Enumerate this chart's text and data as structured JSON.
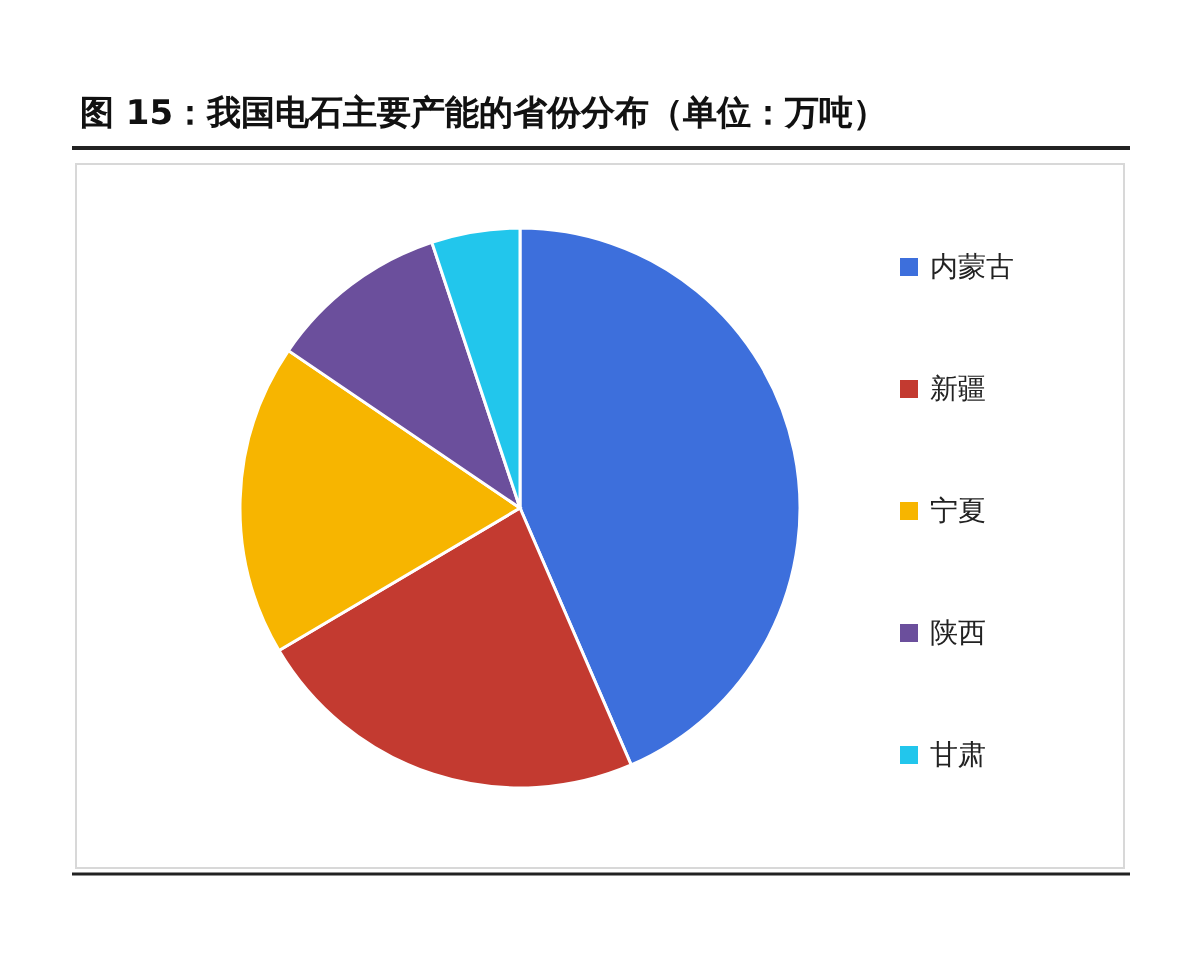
{
  "chart_data": {
    "type": "pie",
    "title": "图 15：我国电石主要产能的省份分布（单位：万吨）",
    "categories": [
      "内蒙古",
      "新疆",
      "宁夏",
      "陕西",
      "甘肃"
    ],
    "values": [
      43.5,
      23,
      18,
      10.4,
      5.1
    ],
    "colors": [
      "#3d6fdc",
      "#c33a30",
      "#f7b500",
      "#6b4f9c",
      "#22c6ec"
    ],
    "legend": "right"
  }
}
